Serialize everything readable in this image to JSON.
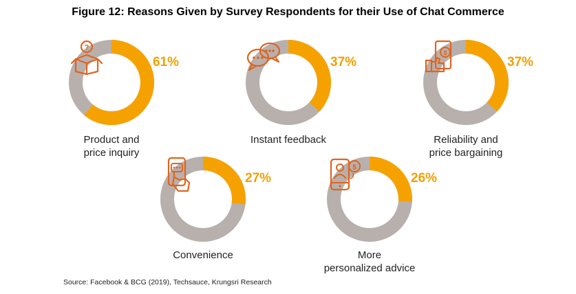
{
  "title": "Figure 12: Reasons Given by Survey Respondents for their Use of Chat Commerce",
  "source": "Source: Facebook & BCG (2019), Techsauce, Krungsri Research",
  "colors": {
    "accent": "#f5a200",
    "track": "#b8b0ad",
    "icon": "#e0641e",
    "pct_text": "#f2a000"
  },
  "chart_data": [
    {
      "type": "pie",
      "value": 61,
      "pct_label": "61%",
      "label_lines": [
        "Product and",
        "price inquiry"
      ],
      "icon": "box-question-icon"
    },
    {
      "type": "pie",
      "value": 37,
      "pct_label": "37%",
      "label_lines": [
        "Instant feedback"
      ],
      "icon": "chat-bubbles-icon"
    },
    {
      "type": "pie",
      "value": 37,
      "pct_label": "37%",
      "label_lines": [
        "Reliability and",
        "price bargaining"
      ],
      "icon": "phone-thumbs-up-icon"
    },
    {
      "type": "pie",
      "value": 27,
      "pct_label": "27%",
      "label_lines": [
        "Convenience"
      ],
      "icon": "hand-phone-icon"
    },
    {
      "type": "pie",
      "value": 26,
      "pct_label": "26%",
      "label_lines": [
        "More",
        "personalized advice"
      ],
      "icon": "phone-person-dollar-icon"
    }
  ]
}
